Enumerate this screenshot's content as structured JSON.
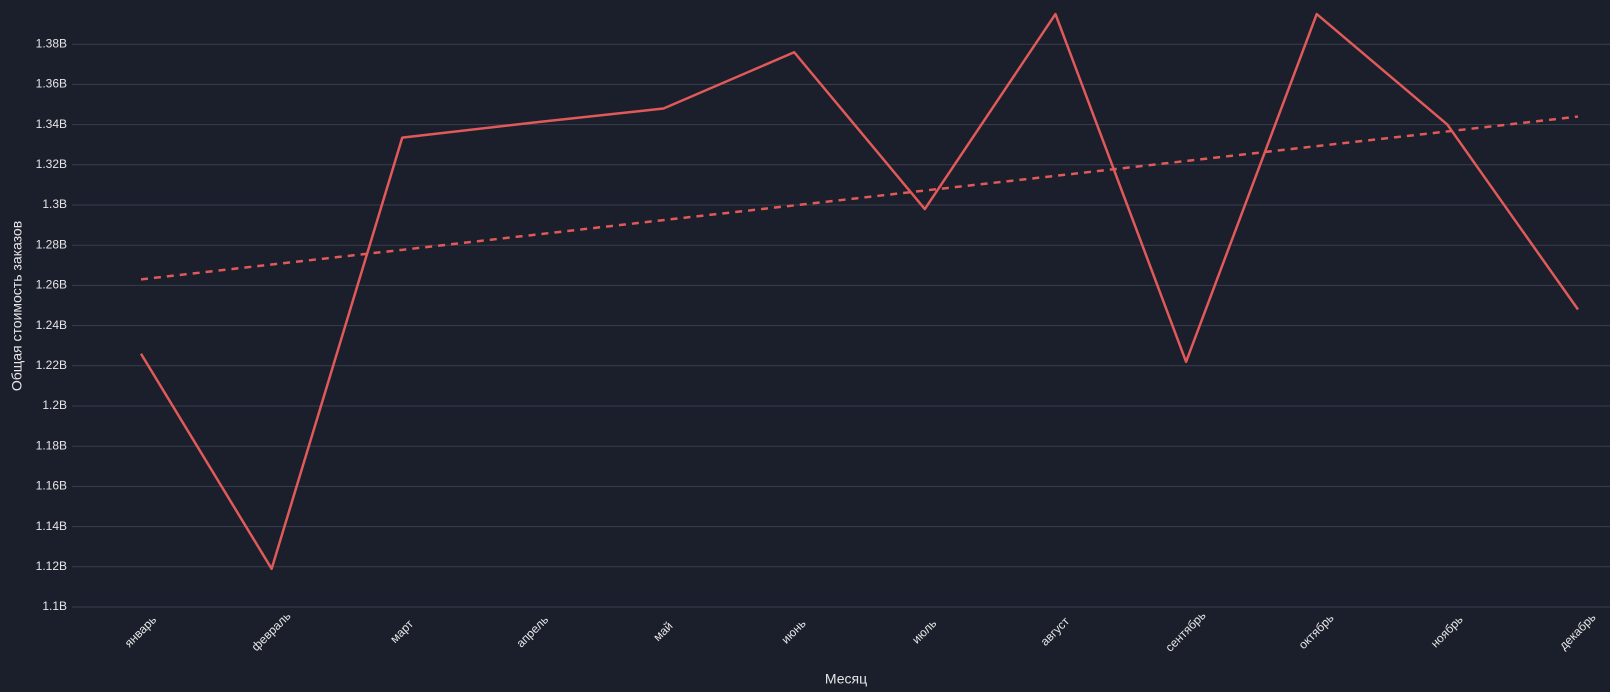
{
  "chart_data": {
    "type": "line",
    "x_label": "Месяц",
    "y_label": "Общая стоимость заказов",
    "categories": [
      "январь",
      "февраль",
      "март",
      "апрель",
      "май",
      "июнь",
      "июль",
      "август",
      "сентябрь",
      "октябрь",
      "ноябрь",
      "декабрь"
    ],
    "series": [
      {
        "color": "#e05a5a",
        "dashed": false,
        "values": [
          1226000000,
          1119000000,
          1333500000,
          1341000000,
          1348000000,
          1376000000,
          1298000000,
          1395000000,
          1222000000,
          1395000000,
          1340000000,
          1248000000
        ]
      },
      {
        "color": "#e05a5a",
        "dashed": true,
        "values": [
          1263000000,
          1270400000,
          1277700000,
          1285100000,
          1292500000,
          1299800000,
          1307200000,
          1314500000,
          1321900000,
          1329300000,
          1336600000,
          1344000000
        ]
      }
    ],
    "ylim": [
      1100000000,
      1400000000
    ],
    "yticks": [
      {
        "value": 1100000000,
        "label": "1.1B"
      },
      {
        "value": 1120000000,
        "label": "1.12B"
      },
      {
        "value": 1140000000,
        "label": "1.14B"
      },
      {
        "value": 1160000000,
        "label": "1.16B"
      },
      {
        "value": 1180000000,
        "label": "1.18B"
      },
      {
        "value": 1200000000,
        "label": "1.2B"
      },
      {
        "value": 1220000000,
        "label": "1.22B"
      },
      {
        "value": 1240000000,
        "label": "1.24B"
      },
      {
        "value": 1260000000,
        "label": "1.26B"
      },
      {
        "value": 1280000000,
        "label": "1.28B"
      },
      {
        "value": 1300000000,
        "label": "1.3B"
      },
      {
        "value": 1320000000,
        "label": "1.32B"
      },
      {
        "value": 1340000000,
        "label": "1.34B"
      },
      {
        "value": 1360000000,
        "label": "1.36B"
      },
      {
        "value": 1380000000,
        "label": "1.38B"
      }
    ],
    "grid": true
  }
}
